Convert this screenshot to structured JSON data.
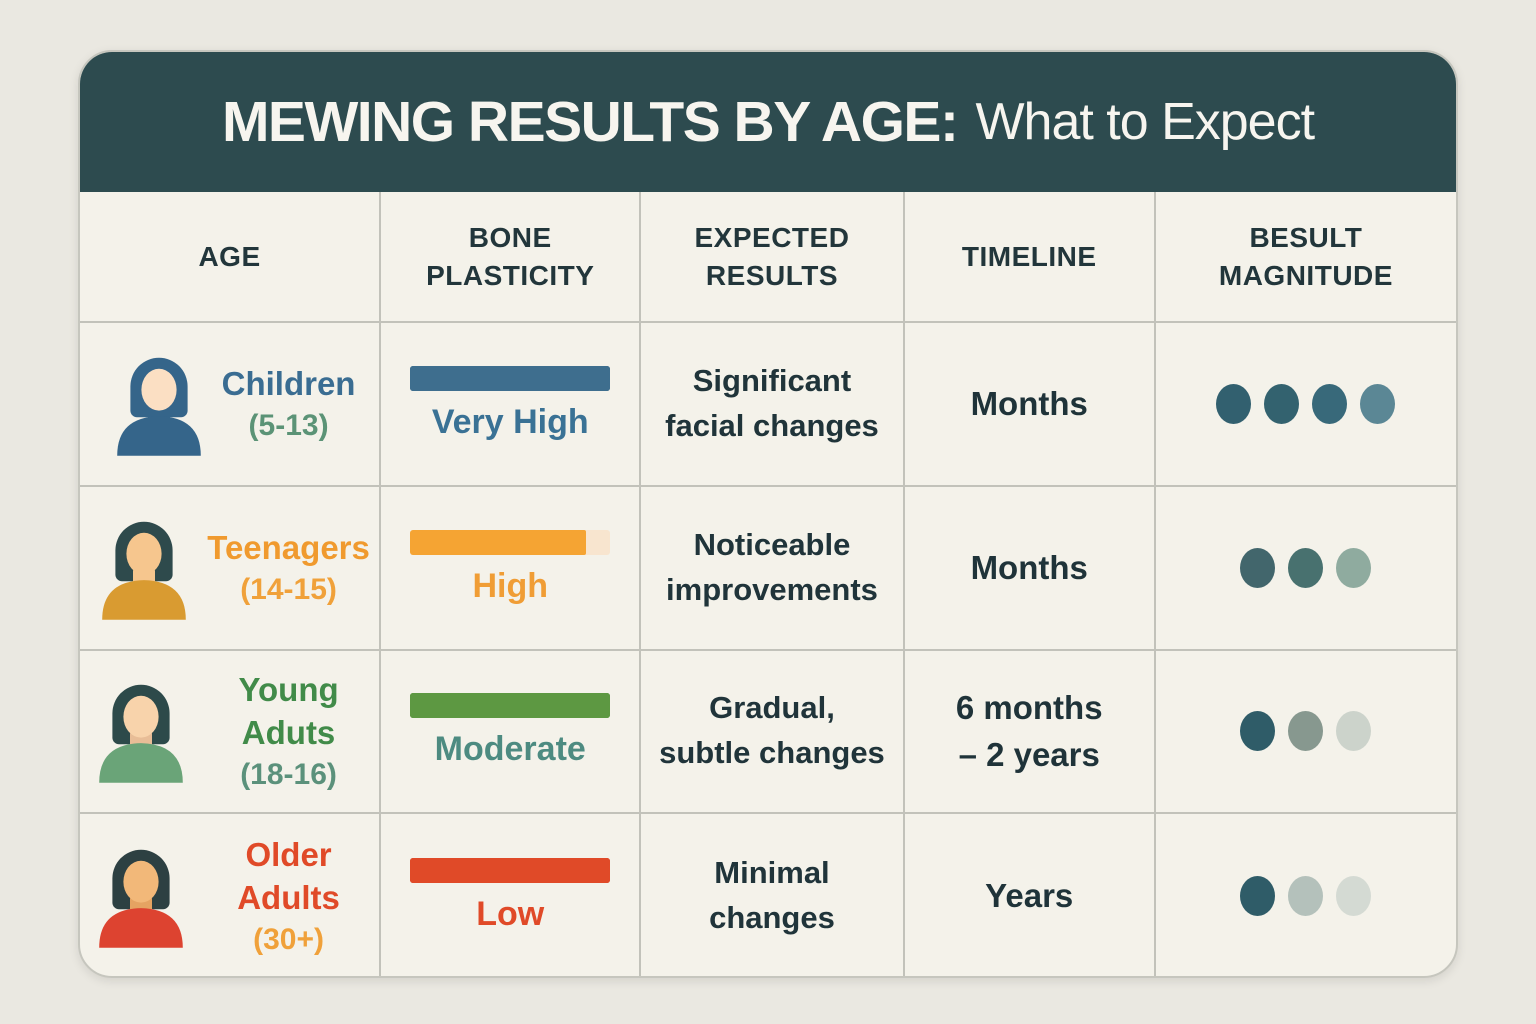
{
  "page": {
    "background": "#eae8e1"
  },
  "header": {
    "title_bold": "MEWING RESULTS BY AGE:",
    "title_light": "What to Expect",
    "band_color": "#2d4b4f",
    "text_color": "#f7f5ef"
  },
  "columns": [
    "AGE",
    "BONE PLASTICITY",
    "EXPECTED RESULTS",
    "TIMELINE",
    "BESULT MAGNITUDE"
  ],
  "rows": [
    {
      "age_name": "Children",
      "age_range": "(5-13)",
      "age_name_color": "#3a6d92",
      "age_range_color": "#5b9376",
      "icon": {
        "name": "child-person-icon",
        "hair": "#35658a",
        "skin": "#fbdfc3",
        "neck": "#35658a",
        "shirt": "#35658a"
      },
      "plasticity": {
        "label": "Very High",
        "fill_pct": 100,
        "fill_color": "#3e6e8e",
        "track_color": "#3e6e8e",
        "label_color": "#3a7295"
      },
      "expected_line1": "Significant",
      "expected_line2": "facial changes",
      "timeline_line1": "Months",
      "timeline_line2": "",
      "dots": [
        "#32606f",
        "#33626f",
        "#38697a",
        "#5b8795"
      ]
    },
    {
      "age_name": "Teenagers",
      "age_range": "(14-15)",
      "age_name_color": "#f09a2e",
      "age_range_color": "#f0a13a",
      "icon": {
        "name": "teenager-person-icon",
        "hair": "#2e4a4c",
        "skin": "#f6c68e",
        "neck": "#f6c68e",
        "shirt": "#d99b31"
      },
      "plasticity": {
        "label": "High",
        "fill_pct": 88,
        "fill_color": "#f5a433",
        "track_color": "#f8e5cf",
        "label_color": "#f09d35"
      },
      "expected_line1": "Noticeable",
      "expected_line2": "improvements",
      "timeline_line1": "Months",
      "timeline_line2": "",
      "dots": [
        "#42666c",
        "#48716f",
        "#8fab9f"
      ]
    },
    {
      "age_name": "Young Aduts",
      "age_range": "(18-16)",
      "age_name_color": "#418b49",
      "age_range_color": "#5b917b",
      "icon": {
        "name": "young-adult-person-icon",
        "hair": "#2d4a4a",
        "skin": "#f8d3ab",
        "neck": "#e8bd97",
        "shirt": "#6aa478"
      },
      "plasticity": {
        "label": "Moderate",
        "fill_pct": 100,
        "fill_color": "#5d9842",
        "track_color": "#5d9842",
        "label_color": "#4d8b81"
      },
      "expected_line1": "Gradual,",
      "expected_line2": "subtle changes",
      "timeline_line1": "6 months",
      "timeline_line2": "– 2 years",
      "dots": [
        "#2f5c68",
        "#87988f",
        "#ccd3cb"
      ]
    },
    {
      "age_name": "Older Adults",
      "age_range": "(30+)",
      "age_name_color": "#e04a28",
      "age_range_color": "#f0a13a",
      "icon": {
        "name": "older-adult-person-icon",
        "hair": "#2d4042",
        "skin": "#f2b879",
        "neck": "#e5a362",
        "shirt": "#dd4330"
      },
      "plasticity": {
        "label": "Low",
        "fill_pct": 100,
        "fill_color": "#e04a28",
        "track_color": "#e04a28",
        "label_color": "#e04a28"
      },
      "expected_line1": "Minimal",
      "expected_line2": "changes",
      "timeline_line1": "Years",
      "timeline_line2": "",
      "dots": [
        "#2f5c68",
        "#b4c1bb",
        "#d4dad3"
      ]
    }
  ],
  "chart_data": {
    "type": "table",
    "title": "MEWING RESULTS BY AGE: What to Expect",
    "columns": [
      "AGE",
      "BONE PLASTICITY",
      "EXPECTED RESULTS",
      "TIMELINE",
      "BESULT MAGNITUDE"
    ],
    "rows": [
      [
        "Children (5-13)",
        "Very High",
        "Significant facial changes",
        "Months",
        "4 dots"
      ],
      [
        "Teenagers (14-15)",
        "High",
        "Noticeable improvements",
        "Months",
        "3 dots"
      ],
      [
        "Young Aduts (18-16)",
        "Moderate",
        "Gradual, subtle changes",
        "6 months – 2 years",
        "3 dots"
      ],
      [
        "Older Adults (30+)",
        "Low",
        "Minimal changes",
        "Years",
        "3 dots"
      ]
    ],
    "plasticity_fill_pct": [
      100,
      88,
      100,
      100
    ],
    "magnitude_dot_counts": [
      4,
      3,
      3,
      3
    ]
  }
}
